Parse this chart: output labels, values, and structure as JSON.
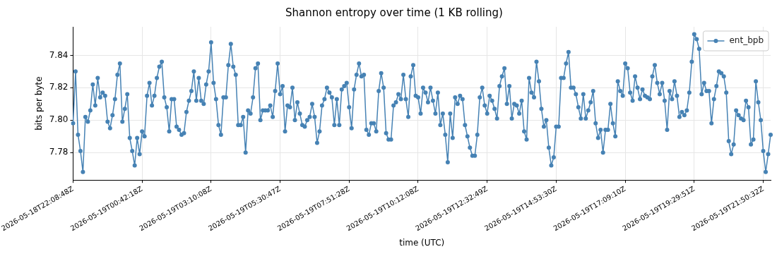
{
  "chart_data": {
    "type": "line",
    "title": "Shannon entropy over time (1 KB rolling)",
    "xlabel": "time (UTC)",
    "ylabel": "bits per byte",
    "categories": [
      "2026-05-18T22:08:48Z",
      null,
      null,
      null,
      null,
      null,
      null,
      null,
      null,
      null,
      null,
      null,
      null,
      null,
      null,
      null,
      null,
      null,
      null,
      null,
      null,
      null,
      null,
      null,
      null,
      null,
      null,
      null,
      "2026-05-19T00:42:18Z",
      null,
      null,
      null,
      null,
      null,
      null,
      null,
      null,
      null,
      null,
      null,
      null,
      null,
      null,
      null,
      null,
      null,
      null,
      null,
      null,
      null,
      null,
      null,
      null,
      null,
      null,
      null,
      "2026-05-19T03:10:08Z",
      null,
      null,
      null,
      null,
      null,
      null,
      null,
      null,
      null,
      null,
      null,
      null,
      null,
      null,
      null,
      null,
      null,
      null,
      null,
      null,
      null,
      null,
      null,
      null,
      null,
      null,
      null,
      "2026-05-19T05:30:47Z",
      null,
      null,
      null,
      null,
      null,
      null,
      null,
      null,
      null,
      null,
      null,
      null,
      null,
      null,
      null,
      null,
      null,
      null,
      null,
      null,
      null,
      null,
      null,
      null,
      null,
      null,
      null,
      "2026-05-19T07:51:28Z",
      null,
      null,
      null,
      null,
      null,
      null,
      null,
      null,
      null,
      null,
      null,
      null,
      null,
      null,
      null,
      null,
      null,
      null,
      null,
      null,
      null,
      null,
      null,
      null,
      null,
      null,
      null,
      "2026-05-19T10:12:08Z",
      null,
      null,
      null,
      null,
      null,
      null,
      null,
      null,
      null,
      null,
      null,
      null,
      null,
      null,
      null,
      null,
      null,
      null,
      null,
      null,
      null,
      null,
      null,
      null,
      null,
      null,
      null,
      "2026-05-19T12:32:49Z",
      null,
      null,
      null,
      null,
      null,
      null,
      null,
      null,
      null,
      null,
      null,
      null,
      null,
      null,
      null,
      null,
      null,
      null,
      null,
      null,
      null,
      null,
      null,
      null,
      null,
      null,
      null,
      "2026-05-19T14:53:30Z",
      null,
      null,
      null,
      null,
      null,
      null,
      null,
      null,
      null,
      null,
      null,
      null,
      null,
      null,
      null,
      null,
      null,
      null,
      null,
      null,
      null,
      null,
      null,
      null,
      null,
      null,
      null,
      "2026-05-19T17:09:10Z",
      null,
      null,
      null,
      null,
      null,
      null,
      null,
      null,
      null,
      null,
      null,
      null,
      null,
      null,
      null,
      null,
      null,
      null,
      null,
      null,
      null,
      null,
      null,
      null,
      null,
      null,
      null,
      "2026-05-19T19:29:51Z",
      null,
      null,
      null,
      null,
      null,
      null,
      null,
      null,
      null,
      null,
      null,
      null,
      null,
      null,
      null,
      null,
      null,
      null,
      null,
      null,
      null,
      null,
      null,
      null,
      null,
      null,
      null,
      "2026-05-19T21:50:32Z",
      null,
      null,
      null
    ],
    "series": [
      {
        "name": "ent_bpb",
        "color": "#4682b4",
        "values": [
          7.798,
          7.83,
          7.791,
          7.781,
          7.768,
          7.802,
          7.799,
          7.806,
          7.822,
          7.809,
          7.826,
          7.814,
          7.817,
          7.815,
          7.799,
          7.795,
          7.803,
          7.813,
          7.828,
          7.835,
          7.799,
          7.807,
          7.816,
          7.789,
          7.781,
          7.772,
          7.789,
          7.779,
          7.793,
          7.79,
          7.815,
          7.823,
          7.809,
          7.815,
          7.826,
          7.833,
          7.836,
          7.814,
          7.808,
          7.793,
          7.813,
          7.813,
          7.796,
          7.794,
          7.791,
          7.792,
          7.805,
          7.812,
          7.818,
          7.83,
          7.812,
          7.826,
          7.812,
          7.81,
          7.822,
          7.83,
          7.848,
          7.823,
          7.813,
          7.797,
          7.791,
          7.814,
          7.814,
          7.834,
          7.847,
          7.833,
          7.828,
          7.797,
          7.797,
          7.802,
          7.78,
          7.806,
          7.804,
          7.814,
          7.832,
          7.835,
          7.8,
          7.806,
          7.806,
          7.806,
          7.809,
          7.802,
          7.818,
          7.835,
          7.816,
          7.821,
          7.793,
          7.809,
          7.808,
          7.82,
          7.8,
          7.811,
          7.804,
          7.797,
          7.796,
          7.8,
          7.802,
          7.81,
          7.802,
          7.786,
          7.793,
          7.809,
          7.813,
          7.82,
          7.817,
          7.814,
          7.797,
          7.813,
          7.797,
          7.819,
          7.821,
          7.823,
          7.808,
          7.795,
          7.819,
          7.828,
          7.835,
          7.827,
          7.828,
          7.794,
          7.791,
          7.798,
          7.798,
          7.793,
          7.818,
          7.829,
          7.82,
          7.792,
          7.788,
          7.788,
          7.809,
          7.811,
          7.816,
          7.813,
          7.828,
          7.813,
          7.802,
          7.827,
          7.834,
          7.815,
          7.814,
          7.804,
          7.82,
          7.817,
          7.811,
          7.82,
          7.812,
          7.804,
          7.817,
          7.797,
          7.804,
          7.791,
          7.774,
          7.804,
          7.789,
          7.814,
          7.81,
          7.815,
          7.813,
          7.797,
          7.79,
          7.783,
          7.778,
          7.778,
          7.791,
          7.814,
          7.82,
          7.809,
          7.804,
          7.815,
          7.812,
          7.807,
          7.801,
          7.821,
          7.827,
          7.832,
          7.81,
          7.821,
          7.801,
          7.81,
          7.809,
          7.804,
          7.812,
          7.793,
          7.788,
          7.826,
          7.817,
          7.814,
          7.836,
          7.824,
          7.807,
          7.796,
          7.8,
          7.783,
          7.772,
          7.777,
          7.796,
          7.796,
          7.826,
          7.826,
          7.835,
          7.842,
          7.82,
          7.82,
          7.816,
          7.808,
          7.801,
          7.816,
          7.801,
          7.806,
          7.811,
          7.818,
          7.798,
          7.789,
          7.794,
          7.78,
          7.794,
          7.794,
          7.81,
          7.798,
          7.79,
          7.824,
          7.818,
          7.815,
          7.835,
          7.832,
          7.817,
          7.812,
          7.827,
          7.82,
          7.813,
          7.819,
          7.815,
          7.814,
          7.813,
          7.827,
          7.834,
          7.823,
          7.816,
          7.823,
          7.812,
          7.794,
          7.818,
          7.813,
          7.824,
          7.815,
          7.802,
          7.805,
          7.803,
          7.806,
          7.817,
          7.836,
          7.853,
          7.85,
          7.844,
          7.816,
          7.823,
          7.818,
          7.818,
          7.798,
          7.813,
          7.821,
          7.83,
          7.829,
          7.827,
          7.817,
          7.787,
          7.779,
          7.785,
          7.806,
          7.803,
          7.801,
          7.8,
          7.812,
          7.808,
          7.785,
          7.788,
          7.824,
          7.811,
          7.8,
          7.781,
          7.768,
          7.779,
          7.791
        ]
      }
    ],
    "ylim": [
      7.763,
      7.8576
    ],
    "yticks": [
      7.78,
      {
        "value": 7.8,
        "label": "7.80"
      },
      7.82,
      7.84
    ],
    "grid": true,
    "legend": "top right",
    "marker": "circle",
    "line_style": "solid"
  }
}
